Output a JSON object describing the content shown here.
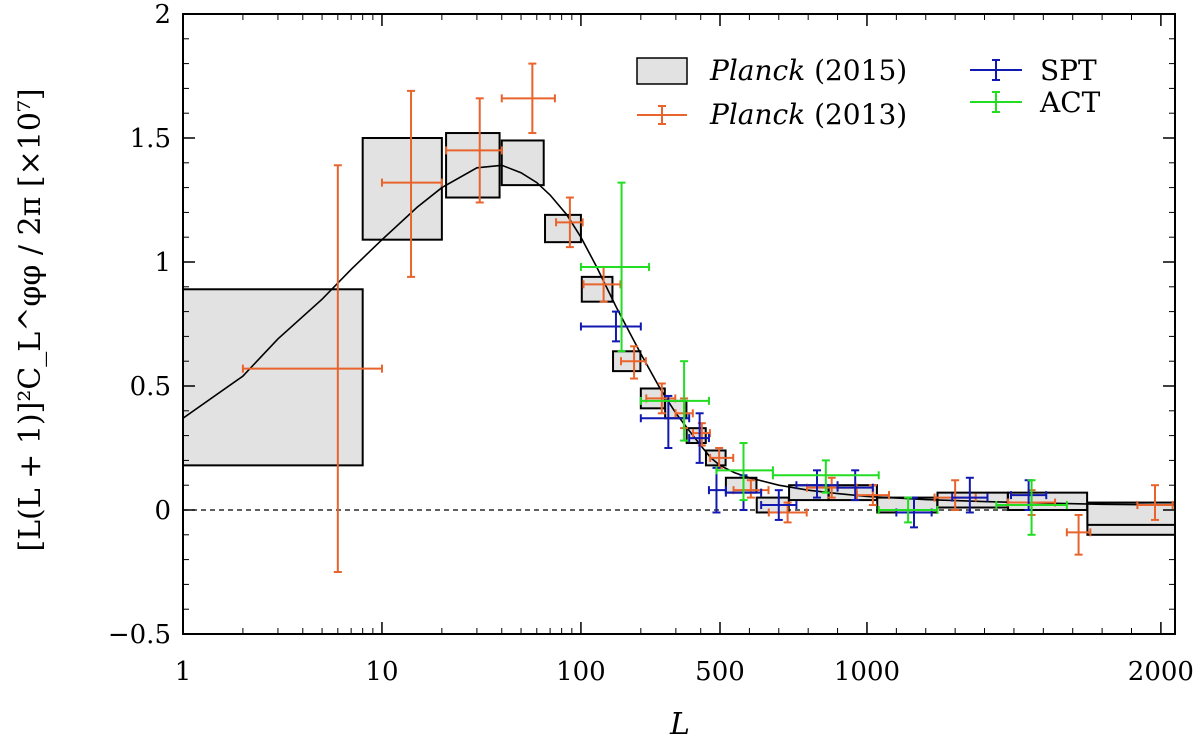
{
  "chart_data": {
    "type": "scatter",
    "xlabel": "L",
    "ylabel": "[L(L + 1)]²C_L^φφ / 2π  [×10⁷]",
    "xscale": "log-then-linear (log up to L=500, linear above)",
    "xlim": [
      1,
      2048
    ],
    "ylim": [
      -0.5,
      2
    ],
    "x_tick_labels": [
      "1",
      "10",
      "100",
      "500",
      "1000",
      "2000"
    ],
    "y_tick_labels": [
      "−0.5",
      "0",
      "0.5",
      "1",
      "1.5",
      "2"
    ],
    "legend": {
      "position": "top-right",
      "entries": [
        {
          "name": "Planck",
          "suffix": " (2015)",
          "kind": "box"
        },
        {
          "name": "Planck",
          "suffix": " (2013)",
          "kind": "errorbar"
        },
        {
          "name": "SPT",
          "suffix": "",
          "kind": "errorbar"
        },
        {
          "name": "ACT",
          "suffix": "",
          "kind": "errorbar"
        }
      ]
    },
    "colors": {
      "planck2015_fill": "#e2e2e2",
      "planck2013": "#e8642c",
      "spt": "#1219b0",
      "act": "#22dd22",
      "theory": "#000000",
      "axis": "#000000"
    },
    "series": [
      {
        "name": "Planck (2015)",
        "kind": "box",
        "points": [
          {
            "x0": 1,
            "x1": 8,
            "y0": 0.18,
            "y1": 0.89
          },
          {
            "x0": 8,
            "x1": 20,
            "y0": 1.09,
            "y1": 1.5
          },
          {
            "x0": 21,
            "x1": 39,
            "y0": 1.26,
            "y1": 1.52
          },
          {
            "x0": 40,
            "x1": 65,
            "y0": 1.31,
            "y1": 1.49
          },
          {
            "x0": 66,
            "x1": 100,
            "y0": 1.08,
            "y1": 1.19
          },
          {
            "x0": 101,
            "x1": 144,
            "y0": 0.84,
            "y1": 0.94
          },
          {
            "x0": 145,
            "x1": 199,
            "y0": 0.56,
            "y1": 0.64
          },
          {
            "x0": 200,
            "x1": 264,
            "y0": 0.41,
            "y1": 0.49
          },
          {
            "x0": 265,
            "x1": 339,
            "y0": 0.37,
            "y1": 0.44
          },
          {
            "x0": 340,
            "x1": 424,
            "y0": 0.27,
            "y1": 0.33
          },
          {
            "x0": 425,
            "x1": 519,
            "y0": 0.18,
            "y1": 0.24
          },
          {
            "x0": 520,
            "x1": 624,
            "y0": 0.07,
            "y1": 0.13
          },
          {
            "x0": 625,
            "x1": 734,
            "y0": -0.01,
            "y1": 0.05
          },
          {
            "x0": 735,
            "x1": 869,
            "y0": 0.04,
            "y1": 0.1
          },
          {
            "x0": 870,
            "x1": 1034,
            "y0": 0.04,
            "y1": 0.1
          },
          {
            "x0": 1035,
            "x1": 1239,
            "y0": -0.01,
            "y1": 0.05
          },
          {
            "x0": 1240,
            "x1": 1479,
            "y0": 0.01,
            "y1": 0.07
          },
          {
            "x0": 1480,
            "x1": 1749,
            "y0": 0.0,
            "y1": 0.07
          },
          {
            "x0": 1750,
            "x1": 2048,
            "y0": -0.1,
            "y1": 0.0
          },
          {
            "x0": 2049,
            "x1": 2048,
            "y0": 0,
            "y1": 0
          }
        ]
      },
      {
        "name": "Planck (2015) extra",
        "kind": "box",
        "points": [
          {
            "x0": 1750,
            "x1": 2048,
            "y0": -0.06,
            "y1": 0.03
          }
        ]
      },
      {
        "name": "Planck (2013)",
        "kind": "errorbar",
        "points": [
          {
            "x": 6,
            "xlo": 2,
            "xhi": 10,
            "y": 0.57,
            "ylo": -0.25,
            "yhi": 1.39
          },
          {
            "x": 14,
            "xlo": 10,
            "xhi": 20,
            "y": 1.32,
            "ylo": 0.94,
            "yhi": 1.69
          },
          {
            "x": 31,
            "xlo": 21,
            "xhi": 40,
            "y": 1.45,
            "ylo": 1.24,
            "yhi": 1.66
          },
          {
            "x": 57,
            "xlo": 40,
            "xhi": 74,
            "y": 1.66,
            "ylo": 1.52,
            "yhi": 1.8
          },
          {
            "x": 88,
            "xlo": 75,
            "xhi": 102,
            "y": 1.16,
            "ylo": 1.06,
            "yhi": 1.26
          },
          {
            "x": 130,
            "xlo": 103,
            "xhi": 158,
            "y": 0.91,
            "ylo": 0.84,
            "yhi": 0.98
          },
          {
            "x": 185,
            "xlo": 159,
            "xhi": 212,
            "y": 0.6,
            "ylo": 0.53,
            "yhi": 0.66
          },
          {
            "x": 255,
            "xlo": 213,
            "xhi": 298,
            "y": 0.45,
            "ylo": 0.39,
            "yhi": 0.51
          },
          {
            "x": 330,
            "xlo": 299,
            "xhi": 365,
            "y": 0.39,
            "ylo": 0.33,
            "yhi": 0.45
          },
          {
            "x": 405,
            "xlo": 366,
            "xhi": 445,
            "y": 0.31,
            "ylo": 0.26,
            "yhi": 0.35
          },
          {
            "x": 495,
            "xlo": 446,
            "xhi": 545,
            "y": 0.21,
            "ylo": 0.17,
            "yhi": 0.25
          },
          {
            "x": 605,
            "xlo": 546,
            "xhi": 665,
            "y": 0.08,
            "ylo": 0.05,
            "yhi": 0.12
          },
          {
            "x": 730,
            "xlo": 666,
            "xhi": 795,
            "y": -0.01,
            "ylo": -0.05,
            "yhi": 0.03
          },
          {
            "x": 880,
            "xlo": 796,
            "xhi": 965,
            "y": 0.09,
            "ylo": 0.05,
            "yhi": 0.13
          },
          {
            "x": 1020,
            "xlo": 966,
            "xhi": 1075,
            "y": 0.06,
            "ylo": 0.02,
            "yhi": 0.1
          },
          {
            "x": 1300,
            "xlo": 1230,
            "xhi": 1370,
            "y": 0.05,
            "ylo": 0.0,
            "yhi": 0.12
          },
          {
            "x": 1560,
            "xlo": 1480,
            "xhi": 1640,
            "y": 0.03,
            "ylo": -0.02,
            "yhi": 0.08
          },
          {
            "x": 1720,
            "xlo": 1680,
            "xhi": 1760,
            "y": -0.09,
            "ylo": -0.18,
            "yhi": -0.02
          },
          {
            "x": 1980,
            "xlo": 1920,
            "xhi": 2040,
            "y": 0.02,
            "ylo": -0.04,
            "yhi": 0.1
          }
        ]
      },
      {
        "name": "SPT",
        "kind": "errorbar",
        "points": [
          {
            "x": 150,
            "xlo": 100,
            "xhi": 200,
            "y": 0.74,
            "ylo": 0.68,
            "yhi": 0.8
          },
          {
            "x": 275,
            "xlo": 200,
            "xhi": 350,
            "y": 0.37,
            "ylo": 0.25,
            "yhi": 0.46
          },
          {
            "x": 395,
            "xlo": 350,
            "xhi": 440,
            "y": 0.29,
            "ylo": 0.19,
            "yhi": 0.39
          },
          {
            "x": 480,
            "xlo": 440,
            "xhi": 520,
            "y": 0.08,
            "ylo": -0.01,
            "yhi": 0.17
          },
          {
            "x": 580,
            "xlo": 520,
            "xhi": 640,
            "y": 0.07,
            "ylo": 0.0,
            "yhi": 0.14
          },
          {
            "x": 700,
            "xlo": 640,
            "xhi": 760,
            "y": 0.02,
            "ylo": -0.04,
            "yhi": 0.08
          },
          {
            "x": 830,
            "xlo": 760,
            "xhi": 900,
            "y": 0.1,
            "ylo": 0.05,
            "yhi": 0.16
          },
          {
            "x": 960,
            "xlo": 900,
            "xhi": 1020,
            "y": 0.09,
            "ylo": 0.04,
            "yhi": 0.16
          },
          {
            "x": 1160,
            "xlo": 1100,
            "xhi": 1220,
            "y": -0.01,
            "ylo": -0.07,
            "yhi": 0.05
          },
          {
            "x": 1350,
            "xlo": 1290,
            "xhi": 1410,
            "y": 0.05,
            "ylo": -0.01,
            "yhi": 0.13
          },
          {
            "x": 1550,
            "xlo": 1490,
            "xhi": 1610,
            "y": 0.06,
            "ylo": 0.0,
            "yhi": 0.12
          }
        ]
      },
      {
        "name": "ACT",
        "kind": "errorbar",
        "points": [
          {
            "x": 160,
            "xlo": 100,
            "xhi": 220,
            "y": 0.98,
            "ylo": 0.64,
            "yhi": 1.32
          },
          {
            "x": 330,
            "xlo": 200,
            "xhi": 440,
            "y": 0.44,
            "ylo": 0.28,
            "yhi": 0.6
          },
          {
            "x": 580,
            "xlo": 480,
            "xhi": 680,
            "y": 0.16,
            "ylo": 0.04,
            "yhi": 0.27
          },
          {
            "x": 860,
            "xlo": 680,
            "xhi": 1040,
            "y": 0.14,
            "ylo": 0.07,
            "yhi": 0.2
          },
          {
            "x": 1140,
            "xlo": 1040,
            "xhi": 1240,
            "y": 0.0,
            "ylo": -0.05,
            "yhi": 0.05
          },
          {
            "x": 1560,
            "xlo": 1440,
            "xhi": 1680,
            "y": 0.02,
            "ylo": -0.1,
            "yhi": 0.12
          }
        ]
      },
      {
        "name": "Theory",
        "kind": "line",
        "points": [
          [
            1,
            0.37
          ],
          [
            2,
            0.54
          ],
          [
            3,
            0.69
          ],
          [
            5,
            0.85
          ],
          [
            7,
            0.97
          ],
          [
            10,
            1.09
          ],
          [
            15,
            1.22
          ],
          [
            20,
            1.3
          ],
          [
            30,
            1.38
          ],
          [
            40,
            1.39
          ],
          [
            50,
            1.36
          ],
          [
            60,
            1.32
          ],
          [
            70,
            1.27
          ],
          [
            85,
            1.19
          ],
          [
            100,
            1.1
          ],
          [
            120,
            0.98
          ],
          [
            150,
            0.82
          ],
          [
            200,
            0.63
          ],
          [
            250,
            0.49
          ],
          [
            300,
            0.39
          ],
          [
            350,
            0.32
          ],
          [
            400,
            0.26
          ],
          [
            450,
            0.21
          ],
          [
            500,
            0.18
          ],
          [
            550,
            0.15
          ],
          [
            600,
            0.13
          ],
          [
            700,
            0.1
          ],
          [
            800,
            0.08
          ],
          [
            900,
            0.066
          ],
          [
            1000,
            0.055
          ],
          [
            1200,
            0.042
          ],
          [
            1400,
            0.034
          ],
          [
            1600,
            0.028
          ],
          [
            1800,
            0.023
          ],
          [
            2048,
            0.02
          ]
        ]
      }
    ]
  }
}
